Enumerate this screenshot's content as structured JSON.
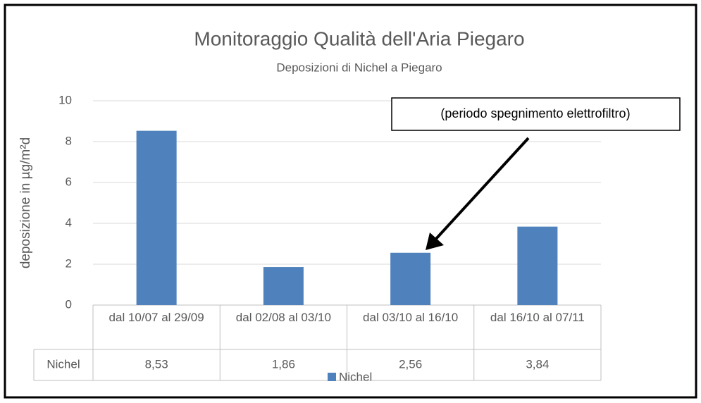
{
  "chart_data": {
    "type": "bar",
    "title": "Monitoraggio Qualità dell'Aria Piegaro",
    "subtitle": "Deposizioni di Nichel a Piegaro",
    "y_label": "deposizione in µg/m²d",
    "annotation": "(periodo spegnimento elettrofiltro)",
    "categories": [
      "dal 10/07 al 29/09",
      "dal 02/08 al 03/10",
      "dal 03/10 al 16/10",
      "dal 16/10 al 07/11"
    ],
    "series": [
      {
        "name": "Nichel",
        "color": "#4f81bd",
        "values": [
          8.53,
          1.86,
          2.56,
          3.84
        ],
        "value_labels": [
          "8,53",
          "1,86",
          "2,56",
          "3,84"
        ]
      }
    ],
    "ylim": [
      0,
      10
    ],
    "yticks": [
      0,
      2,
      4,
      6,
      8,
      10
    ],
    "grid": true,
    "legend": "bottom"
  }
}
